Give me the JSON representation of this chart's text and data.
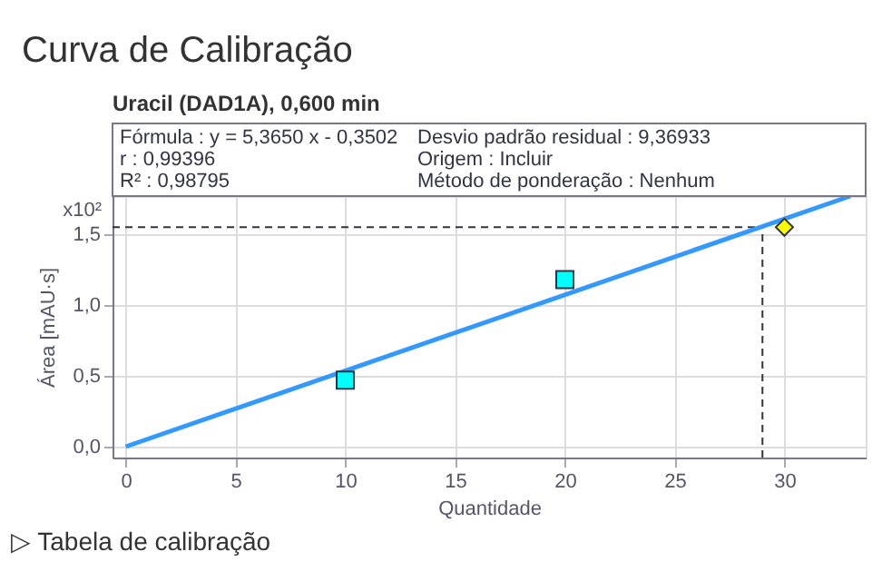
{
  "chart_data": {
    "type": "scatter",
    "title": "Curva de Calibração",
    "subtitle": "Uracil (DAD1A), 0,600 min",
    "xlabel": "Quantidade",
    "ylabel": "Área [mAU·s]",
    "annotations": [
      "Fórmula : y = 5,3650 x - 0,3502",
      "r : 0,99396",
      "R² : 0,98795",
      "Desvio padrão residual : 9,36933",
      "Origem : Incluir",
      "Método de ponderação : Nenhum",
      "x10²",
      "▷ Tabela de calibração"
    ],
    "series": [
      {
        "type": "line",
        "color": "#3399ff",
        "x": [
          0,
          33
        ],
        "values": [
          0,
          1.77
        ],
        "marker": "none",
        "line_style": "solid"
      },
      {
        "color": "#00ffff",
        "x": [
          10,
          20
        ],
        "values": [
          0.47,
          1.18
        ],
        "marker": "square"
      },
      {
        "color": "#ffff00",
        "x": [
          30
        ],
        "values": [
          1.55
        ],
        "marker": "diamond"
      }
    ],
    "ref_lines": [
      {
        "axis": "y",
        "value": 1.55,
        "color": "#333344",
        "line_style": "dashed"
      },
      {
        "axis": "x",
        "value": 29,
        "color": "#333344",
        "line_style": "dashed"
      }
    ],
    "xlim": [
      -0.6,
      33.7
    ],
    "ylim": [
      -0.077,
      1.77
    ],
    "xticks": [
      0,
      5,
      10,
      15,
      20,
      25,
      30
    ],
    "yticks": [
      {
        "value": 0,
        "label": "0,0"
      },
      {
        "value": 0.5,
        "label": "0,5"
      },
      {
        "value": 1.0,
        "label": "1,0"
      },
      {
        "value": 1.5,
        "label": "1,5"
      }
    ],
    "grid": true
  }
}
